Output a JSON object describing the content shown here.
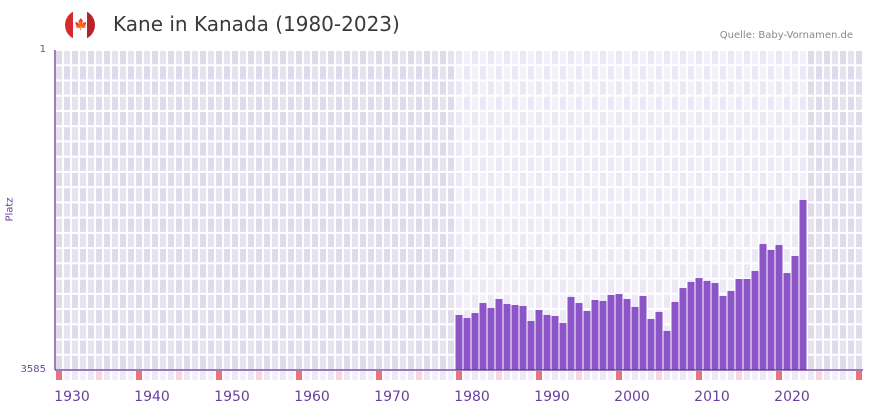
{
  "header": {
    "title": "Kane in Kanada (1980-2023)",
    "source": "Quelle: Baby-Vornamen.de",
    "flag_icon": "canada-flag-icon"
  },
  "colors": {
    "bar": "#8b55c8",
    "axis": "#5a2d91",
    "decade_marker": "#e8737a",
    "half_decade_marker": "#f6d6df",
    "bg_out": "#e3dfec",
    "bg_in": "#efebfa"
  },
  "chart_data": {
    "type": "bar",
    "title": "Kane in Kanada (1980-2023)",
    "xlabel": "",
    "ylabel": "Platz",
    "y_inverted": true,
    "ylim": [
      1,
      3585
    ],
    "ytick_labels": [
      "1",
      "3585"
    ],
    "xlim": [
      1930,
      2030
    ],
    "xtick_labels": [
      "1930",
      "1940",
      "1950",
      "1960",
      "1970",
      "1980",
      "1990",
      "2000",
      "2010",
      "2020"
    ],
    "xticks": [
      1930,
      1940,
      1950,
      1960,
      1970,
      1980,
      1990,
      2000,
      2010,
      2020
    ],
    "grid": true,
    "categories": [
      1980,
      1981,
      1982,
      1983,
      1984,
      1985,
      1986,
      1987,
      1988,
      1989,
      1990,
      1991,
      1992,
      1993,
      1994,
      1995,
      1996,
      1997,
      1998,
      1999,
      2000,
      2001,
      2002,
      2003,
      2004,
      2005,
      2006,
      2007,
      2008,
      2009,
      2010,
      2011,
      2012,
      2013,
      2014,
      2015,
      2016,
      2017,
      2018,
      2019,
      2020,
      2021,
      2022,
      2023
    ],
    "values": [
      2969,
      3003,
      2947,
      2835,
      2891,
      2790,
      2846,
      2857,
      2868,
      3036,
      2913,
      2969,
      2980,
      3059,
      2767,
      2835,
      2924,
      2801,
      2812,
      2745,
      2734,
      2790,
      2879,
      2756,
      3014,
      2935,
      3148,
      2823,
      2667,
      2599,
      2555,
      2588,
      2611,
      2756,
      2700,
      2566,
      2566,
      2476,
      2174,
      2241,
      2185,
      2499,
      2308,
      1681
    ]
  }
}
